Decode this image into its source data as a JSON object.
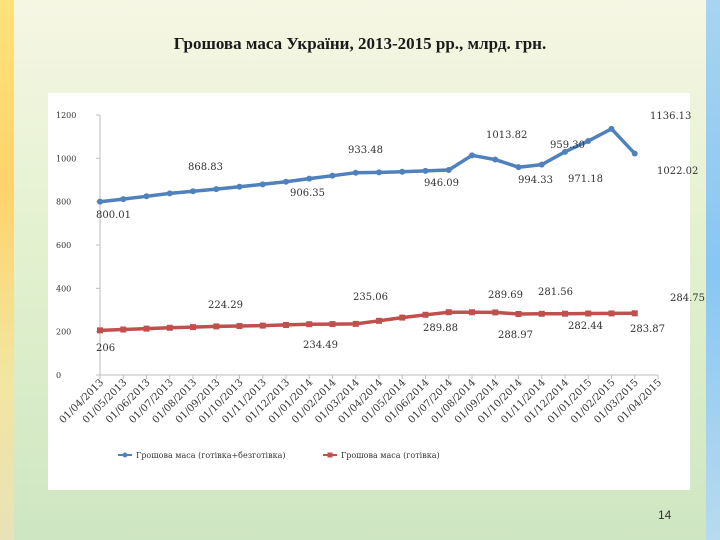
{
  "slide": {
    "title": "Грошова  маса України, 2013-2015 рр., млрд. грн.",
    "page_number": "14"
  },
  "colors": {
    "series_m2": "#4f81bd",
    "series_cash": "#c0504d"
  },
  "chart_data": {
    "type": "line",
    "title": "Грошова  маса України, 2013-2015 рр., млрд. грн.",
    "xlabel": "",
    "ylabel": "",
    "ylim": [
      0,
      1200
    ],
    "yticks": [
      0,
      200,
      400,
      600,
      800,
      1000,
      1200
    ],
    "grid": false,
    "legend_position": "bottom",
    "categories": [
      "01/04/2013",
      "01/05/2013",
      "01/06/2013",
      "01/07/2013",
      "01/08/2013",
      "01/09/2013",
      "01/10/2013",
      "01/11/2013",
      "01/12/2013",
      "01/01/2014",
      "01/02/2014",
      "01/03/2014",
      "01/04/2014",
      "01/05/2014",
      "01/06/2014",
      "01/07/2014",
      "01/08/2014",
      "01/09/2014",
      "01/10/2014",
      "01/11/2014",
      "01/12/2014",
      "01/01/2015",
      "01/02/2015",
      "01/03/2015",
      "01/04/2015"
    ],
    "series": [
      {
        "name": "Грошова маса (готівка+безготівка)",
        "values": [
          800.01,
          812,
          825,
          838,
          848,
          858,
          868.83,
          880,
          892,
          906.35,
          920,
          933.48,
          935,
          938,
          942,
          946.09,
          1013.82,
          994.33,
          959.3,
          971.18,
          1030,
          1080,
          1136.13,
          1022.02,
          null
        ]
      },
      {
        "name": "Грошова маса (готівка)",
        "values": [
          206,
          210,
          214,
          218,
          221,
          224.29,
          226,
          228,
          231,
          234.49,
          235.06,
          236,
          250,
          265,
          278,
          289.88,
          289.69,
          288.97,
          281.56,
          282.44,
          283.0,
          283.87,
          284.1,
          284.75,
          null
        ]
      }
    ],
    "data_labels": {
      "series_0": [
        "800.01",
        "868.83",
        "906.35",
        "933.48",
        "946.09",
        "1013.82",
        "994.33",
        "959.30",
        "971.18",
        "1136.13",
        "1022.02"
      ],
      "series_1": [
        "206",
        "224.29",
        "234.49",
        "235.06",
        "289.88",
        "289.69",
        "288.97",
        "281.56",
        "282.44",
        "283.87",
        "284.75"
      ]
    }
  }
}
